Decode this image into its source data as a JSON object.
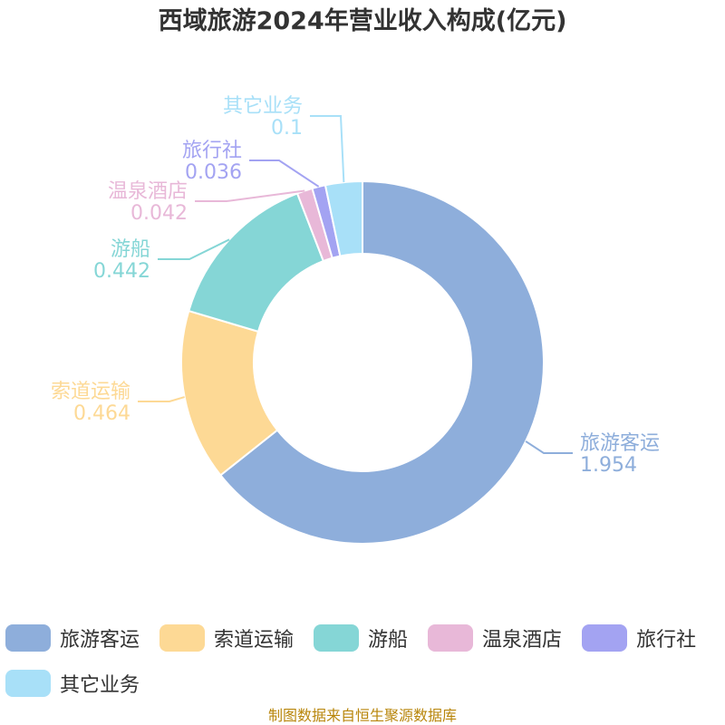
{
  "title": "西域旅游2024年营业收入构成(亿元)",
  "source": "制图数据来自恒生聚源数据库",
  "chart_data": {
    "type": "pie",
    "variant": "donut",
    "title": "西域旅游2024年营业收入构成(亿元)",
    "legend_position": "bottom",
    "series": [
      {
        "name": "旅游客运",
        "value": 1.954,
        "label": "1.954",
        "color": "#8eaedb"
      },
      {
        "name": "索道运输",
        "value": 0.464,
        "label": "0.464",
        "color": "#fdd995"
      },
      {
        "name": "游船",
        "value": 0.442,
        "label": "0.442",
        "color": "#85d6d6"
      },
      {
        "name": "温泉酒店",
        "value": 0.042,
        "label": "0.042",
        "color": "#e8b8d8"
      },
      {
        "name": "旅行社",
        "value": 0.036,
        "label": "0.036",
        "color": "#a3a3f2"
      },
      {
        "name": "其它业务",
        "value": 0.1,
        "label": "0.1",
        "color": "#a8e0f8"
      }
    ]
  }
}
